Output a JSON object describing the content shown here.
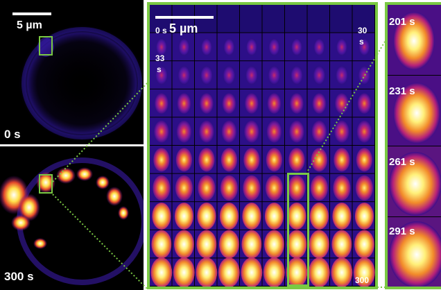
{
  "left_top": {
    "scale_label": "5 µm",
    "time_label": "0 s"
  },
  "left_bottom": {
    "time_label": "300 s"
  },
  "montage": {
    "scale_label": "5 µm",
    "labels": {
      "first": "0 s",
      "row_end": "30",
      "row_end_unit": "s",
      "second_row": "33",
      "second_row_unit": "s",
      "last": "300"
    },
    "rows": 10,
    "cols": 10
  },
  "strip": {
    "labels": [
      "201 s",
      "231 s",
      "261 s",
      "291 s"
    ]
  },
  "colors": {
    "frame": "#7ac943",
    "zoom_line": "#7ac943",
    "background": "#000000"
  }
}
